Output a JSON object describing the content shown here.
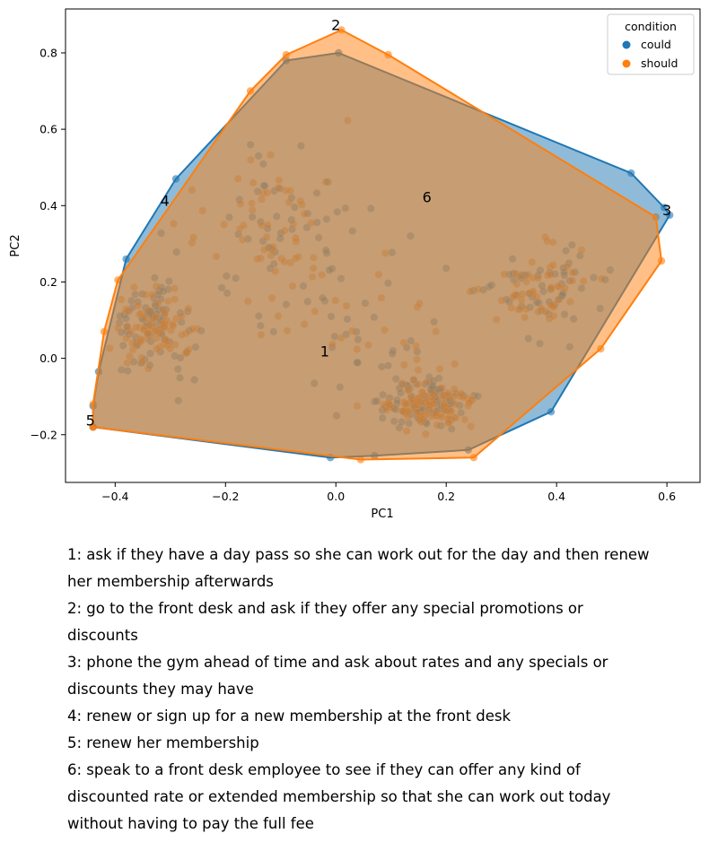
{
  "chart_data": {
    "type": "scatter",
    "xlabel": "PC1",
    "ylabel": "PC2",
    "xlim": [
      -0.49,
      0.66
    ],
    "ylim": [
      -0.325,
      0.915
    ],
    "xticks": [
      -0.4,
      -0.2,
      0.0,
      0.2,
      0.4,
      0.6
    ],
    "yticks": [
      -0.2,
      0.0,
      0.2,
      0.4,
      0.6,
      0.8
    ],
    "grid": false,
    "legend": {
      "title": "condition",
      "placement": "top-right"
    },
    "series": [
      {
        "name": "could",
        "color": "#1f77b4",
        "hull": [
          [
            -0.44,
            -0.125
          ],
          [
            -0.43,
            -0.035
          ],
          [
            -0.38,
            0.26
          ],
          [
            -0.29,
            0.47
          ],
          [
            -0.09,
            0.78
          ],
          [
            0.005,
            0.8
          ],
          [
            0.535,
            0.485
          ],
          [
            0.595,
            0.395
          ],
          [
            0.605,
            0.375
          ],
          [
            0.39,
            -0.14
          ],
          [
            0.24,
            -0.24
          ],
          [
            0.07,
            -0.255
          ],
          [
            -0.01,
            -0.26
          ],
          [
            -0.44,
            -0.18
          ]
        ]
      },
      {
        "name": "should",
        "color": "#ff7f0e",
        "hull": [
          [
            -0.44,
            -0.18
          ],
          [
            -0.44,
            -0.12
          ],
          [
            -0.42,
            0.07
          ],
          [
            -0.395,
            0.205
          ],
          [
            -0.155,
            0.7
          ],
          [
            -0.09,
            0.795
          ],
          [
            0.01,
            0.86
          ],
          [
            0.095,
            0.795
          ],
          [
            0.58,
            0.37
          ],
          [
            0.59,
            0.255
          ],
          [
            0.48,
            0.025
          ],
          [
            0.25,
            -0.26
          ],
          [
            0.045,
            -0.265
          ],
          [
            -0.44,
            -0.18
          ]
        ]
      }
    ],
    "annotations": [
      {
        "label": "1",
        "x": -0.02,
        "y": 0.015
      },
      {
        "label": "2",
        "x": 0.0,
        "y": 0.87
      },
      {
        "label": "3",
        "x": 0.6,
        "y": 0.385
      },
      {
        "label": "4",
        "x": -0.31,
        "y": 0.41
      },
      {
        "label": "5",
        "x": -0.445,
        "y": -0.165
      },
      {
        "label": "6",
        "x": 0.165,
        "y": 0.42
      }
    ]
  },
  "notes": [
    "1: ask if they have a day pass so she can work out for the day and then renew",
    "her membership afterwards",
    "2: go to the front desk and ask if they offer any special promotions or",
    "discounts",
    "3: phone the gym ahead of time and ask about rates and any specials or",
    "discounts they may have",
    "4: renew or sign up for a new membership at the front desk",
    "5: renew her membership",
    "6: speak to a front desk employee to see if they can offer any kind of",
    "discounted rate or extended membership so that she can work out today",
    "without having to pay the full fee"
  ]
}
